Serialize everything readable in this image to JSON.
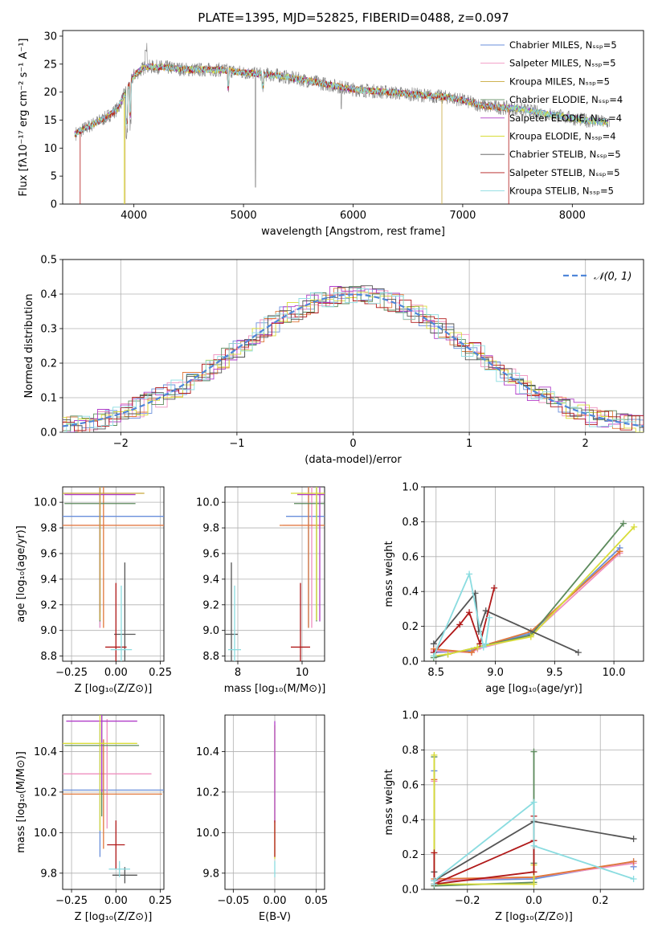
{
  "colors": [
    "#6a8fdb",
    "#ef8fbf",
    "#c8a83a",
    "#5c8a5c",
    "#b03cc8",
    "#d8dc38",
    "#555555",
    "#b01818",
    "#8adce0"
  ],
  "extra_colors": {
    "orange": "#e0783a",
    "gray": "#7f7f7f",
    "dashed": "#4f86d9"
  },
  "chart_data": [
    {
      "id": "spectrum",
      "type": "line",
      "title": "PLATE=1395, MJD=52825, FIBERID=0488, z=0.097",
      "xlabel": "wavelength [Angstrom, rest frame]",
      "ylabel": "Flux [fλ10⁻¹⁷ erg cm⁻² s⁻¹ A⁻¹]",
      "xlim": [
        3350,
        8650
      ],
      "ylim": [
        0,
        31
      ],
      "xticks": [
        4000,
        5000,
        6000,
        7000,
        8000
      ],
      "yticks": [
        0,
        5,
        10,
        15,
        20,
        25,
        30
      ],
      "legend_position": "upper right",
      "series": [
        {
          "name": "Chabrier MILES, Nₛₛₚ=5"
        },
        {
          "name": "Salpeter MILES, Nₛₛₚ=5"
        },
        {
          "name": "Kroupa MILES, Nₛₛₚ=5"
        },
        {
          "name": "Chabrier ELODIE, Nₛₛₚ=4"
        },
        {
          "name": "Salpeter ELODIE, Nₛₛₚ=4"
        },
        {
          "name": "Kroupa ELODIE, Nₛₛₚ=4"
        },
        {
          "name": "Chabrier STELIB, Nₛₛₚ=5"
        },
        {
          "name": "Salpeter STELIB, Nₛₛₚ=5"
        },
        {
          "name": "Kroupa STELIB, Nₛₛₚ=5"
        }
      ],
      "continuum": {
        "wavelength": [
          3460,
          3550,
          3650,
          3750,
          3850,
          3950,
          4000,
          4100,
          4250,
          4500,
          4800,
          5000,
          5300,
          5600,
          6000,
          6300,
          6600,
          6900,
          7200,
          7500,
          7800,
          8100,
          8360
        ],
        "flux": [
          12.5,
          13.5,
          14.5,
          15.5,
          17.0,
          21.0,
          23.0,
          24.5,
          24.5,
          24.0,
          24.0,
          23.5,
          23.0,
          22.0,
          20.5,
          20.0,
          19.5,
          19.0,
          17.5,
          17.0,
          16.0,
          15.0,
          14.5
        ]
      }
    },
    {
      "id": "residuals",
      "type": "line",
      "xlabel": "(data-model)/error",
      "ylabel": "Normed distribution",
      "xlim": [
        -2.5,
        2.5
      ],
      "ylim": [
        0,
        0.5
      ],
      "xticks": [
        -2,
        -1,
        0,
        1,
        2
      ],
      "yticks": [
        0.0,
        0.1,
        0.2,
        0.3,
        0.4,
        0.5
      ],
      "grid": true,
      "legend": "𝒩(0, 1)",
      "legend_position": "upper right"
    },
    {
      "id": "age_vs_Z",
      "type": "scatter",
      "xlabel": "Z [log₁₀(Z/Z⊙)]",
      "ylabel": "age  [log₁₀(age/yr)]",
      "xlim": [
        -0.3,
        0.27
      ],
      "ylim": [
        8.76,
        10.12
      ],
      "xticks": [
        -0.25,
        0.0,
        0.25
      ],
      "yticks": [
        8.8,
        9.0,
        9.2,
        9.4,
        9.6,
        9.8,
        10.0
      ],
      "grid": true,
      "errorbars": [
        {
          "color": 0,
          "x": -0.09,
          "xerr": 0.37,
          "y": 9.89,
          "yerr": 0.87
        },
        {
          "color": 1,
          "x": -0.09,
          "xerr": 0.37,
          "y": 9.82,
          "yerr": 0.8
        },
        {
          "color": "orange",
          "x": -0.07,
          "xerr": 0.35,
          "y": 9.82,
          "yerr": 0.8
        },
        {
          "color": 3,
          "x": -0.09,
          "xerr": 0.2,
          "y": 9.99,
          "yerr": 0.92
        },
        {
          "color": 4,
          "x": -0.09,
          "xerr": 0.2,
          "y": 10.06,
          "yerr": 0.92
        },
        {
          "color": 2,
          "x": -0.09,
          "xerr": 0.25,
          "y": 10.07,
          "yerr": 0.99
        },
        {
          "color": 6,
          "x": 0.05,
          "xerr": 0.06,
          "y": 8.97,
          "yerr": 0.56
        },
        {
          "color": 7,
          "x": 0.0,
          "xerr": 0.06,
          "y": 8.87,
          "yerr": 0.5
        },
        {
          "color": 8,
          "x": 0.03,
          "xerr": 0.06,
          "y": 8.85,
          "yerr": 0.5
        }
      ]
    },
    {
      "id": "age_vs_mass",
      "type": "scatter",
      "xlabel": "mass [log₁₀(M/M⊙)]",
      "ylabel": "",
      "xlim": [
        7.6,
        10.7
      ],
      "ylim": [
        8.76,
        10.12
      ],
      "xticks": [
        8,
        10
      ],
      "yticks": [
        8.8,
        9.0,
        9.2,
        9.4,
        9.6,
        9.8,
        10.0
      ],
      "grid": true,
      "errorbars": [
        {
          "color": 0,
          "x": 10.2,
          "xerr": 0.7,
          "y": 9.89,
          "yerr": 0.87
        },
        {
          "color": 1,
          "x": 10.3,
          "xerr": 0.9,
          "y": 9.82,
          "yerr": 0.8
        },
        {
          "color": "orange",
          "x": 10.2,
          "xerr": 0.9,
          "y": 9.82,
          "yerr": 0.8
        },
        {
          "color": 3,
          "x": 10.45,
          "xerr": 0.7,
          "y": 9.99,
          "yerr": 0.92
        },
        {
          "color": 4,
          "x": 10.55,
          "xerr": 0.7,
          "y": 10.06,
          "yerr": 0.99
        },
        {
          "color": 5,
          "x": 10.45,
          "xerr": 0.8,
          "y": 10.07,
          "yerr": 0.99
        },
        {
          "color": 6,
          "x": 7.8,
          "xerr": 0.2,
          "y": 8.97,
          "yerr": 0.56
        },
        {
          "color": 7,
          "x": 9.95,
          "xerr": 0.3,
          "y": 8.87,
          "yerr": 0.5
        },
        {
          "color": 8,
          "x": 7.9,
          "xerr": 0.2,
          "y": 8.85,
          "yerr": 0.5
        }
      ]
    },
    {
      "id": "weight_vs_age",
      "type": "line",
      "xlabel": "age  [log₁₀(age/yr)]",
      "ylabel": "mass weight",
      "xlim": [
        8.4,
        10.25
      ],
      "ylim": [
        0.0,
        1.0
      ],
      "xticks": [
        8.5,
        9.0,
        9.5,
        10.0
      ],
      "yticks": [
        0.0,
        0.2,
        0.4,
        0.6,
        0.8,
        1.0
      ],
      "grid": true,
      "series": [
        {
          "color": 0,
          "x": [
            8.48,
            8.8,
            8.85,
            9.3,
            10.05
          ],
          "y": [
            0.05,
            0.06,
            0.08,
            0.16,
            0.65
          ]
        },
        {
          "color": 1,
          "x": [
            8.48,
            8.8,
            8.85,
            9.3,
            10.05
          ],
          "y": [
            0.06,
            0.05,
            0.07,
            0.15,
            0.62
          ]
        },
        {
          "color": "orange",
          "x": [
            8.48,
            8.8,
            8.85,
            9.3,
            10.05
          ],
          "y": [
            0.07,
            0.05,
            0.08,
            0.17,
            0.63
          ]
        },
        {
          "color": 3,
          "x": [
            8.48,
            8.6,
            8.85,
            9.3,
            10.08
          ],
          "y": [
            0.02,
            0.04,
            0.08,
            0.15,
            0.79
          ]
        },
        {
          "color": 5,
          "x": [
            8.48,
            8.6,
            8.85,
            9.3,
            10.17
          ],
          "y": [
            0.03,
            0.04,
            0.08,
            0.14,
            0.77
          ]
        },
        {
          "color": 6,
          "x": [
            8.48,
            8.83,
            8.86,
            8.92,
            9.7
          ],
          "y": [
            0.1,
            0.39,
            0.17,
            0.29,
            0.05
          ]
        },
        {
          "color": 7,
          "x": [
            8.48,
            8.7,
            8.78,
            8.87,
            8.99
          ],
          "y": [
            0.05,
            0.21,
            0.28,
            0.1,
            0.42
          ]
        },
        {
          "color": 8,
          "x": [
            8.48,
            8.78,
            8.9,
            8.92,
            8.95
          ],
          "y": [
            0.03,
            0.5,
            0.08,
            0.1,
            0.25
          ]
        }
      ]
    },
    {
      "id": "mass_vs_Z",
      "type": "scatter",
      "xlabel": "Z [log₁₀(Z/Z⊙)]",
      "ylabel": "mass [log₁₀(M/M⊙)]",
      "xlim": [
        -0.3,
        0.27
      ],
      "ylim": [
        9.72,
        10.58
      ],
      "xticks": [
        -0.25,
        0.0,
        0.25
      ],
      "yticks": [
        9.8,
        10.0,
        10.2,
        10.4
      ],
      "grid": true,
      "errorbars": [
        {
          "color": 0,
          "x": -0.09,
          "xerr": 0.37,
          "y": 10.21,
          "yerr": 0.33
        },
        {
          "color": 1,
          "x": -0.05,
          "xerr": 0.25,
          "y": 10.29,
          "yerr": 0.27
        },
        {
          "color": "orange",
          "x": -0.07,
          "xerr": 0.33,
          "y": 10.19,
          "yerr": 0.27
        },
        {
          "color": 3,
          "x": -0.08,
          "xerr": 0.21,
          "y": 10.43,
          "yerr": 0.35
        },
        {
          "color": 4,
          "x": -0.08,
          "xerr": 0.2,
          "y": 10.55,
          "yerr": 0.35
        },
        {
          "color": 5,
          "x": -0.09,
          "xerr": 0.21,
          "y": 10.44,
          "yerr": 0.43
        },
        {
          "color": 6,
          "x": 0.05,
          "xerr": 0.07,
          "y": 9.79,
          "yerr": 0.04
        },
        {
          "color": 7,
          "x": 0.0,
          "xerr": 0.05,
          "y": 9.94,
          "yerr": 0.12
        },
        {
          "color": 8,
          "x": 0.02,
          "xerr": 0.06,
          "y": 9.82,
          "yerr": 0.04
        }
      ]
    },
    {
      "id": "mass_vs_ebv",
      "type": "scatter",
      "xlabel": "E(B-V)",
      "ylabel": "",
      "xlim": [
        -0.06,
        0.06
      ],
      "ylim": [
        9.72,
        10.58
      ],
      "xticks": [
        -0.05,
        0.0,
        0.05
      ],
      "yticks": [
        9.8,
        10.0,
        10.2,
        10.4
      ],
      "grid": true,
      "errorbars": [
        {
          "color": 5,
          "x": 0.0,
          "xerr": 0.0,
          "y": 10.2,
          "yerr": 0.33
        },
        {
          "color": 4,
          "x": 0.0,
          "xerr": 0.0,
          "y": 10.3,
          "yerr": 0.25
        },
        {
          "color": 7,
          "x": 0.0,
          "xerr": 0.0,
          "y": 9.97,
          "yerr": 0.09
        },
        {
          "color": 8,
          "x": 0.0,
          "xerr": 0.0,
          "y": 9.82,
          "yerr": 0.04
        }
      ]
    },
    {
      "id": "weight_vs_Z",
      "type": "line",
      "xlabel": "Z [log₁₀(Z/Z⊙)]",
      "ylabel": "mass weight",
      "xlim": [
        -0.33,
        0.33
      ],
      "ylim": [
        0.0,
        1.0
      ],
      "xticks": [
        -0.2,
        0.0,
        0.2
      ],
      "yticks": [
        0.0,
        0.2,
        0.4,
        0.6,
        0.8,
        1.0
      ],
      "grid": true,
      "series": [
        {
          "color": 0,
          "x": [
            -0.3,
            -0.3,
            0.0,
            0.3,
            0.3
          ],
          "y": [
            0.68,
            0.05,
            0.06,
            0.16,
            0.13
          ]
        },
        {
          "color": 1,
          "x": [
            -0.3,
            -0.3,
            0.0,
            0.3
          ],
          "y": [
            0.62,
            0.05,
            0.07,
            0.15
          ]
        },
        {
          "color": "orange",
          "x": [
            -0.3,
            -0.3,
            0.0,
            0.3
          ],
          "y": [
            0.63,
            0.06,
            0.07,
            0.16
          ]
        },
        {
          "color": 3,
          "x": [
            -0.3,
            -0.3,
            0.0,
            0.0,
            0.0
          ],
          "y": [
            0.76,
            0.02,
            0.04,
            0.79,
            0.15
          ]
        },
        {
          "color": 5,
          "x": [
            -0.3,
            -0.3,
            0.0,
            0.0
          ],
          "y": [
            0.77,
            0.03,
            0.03,
            0.14
          ]
        },
        {
          "color": 6,
          "x": [
            -0.3,
            -0.3,
            0.0,
            0.3
          ],
          "y": [
            0.1,
            0.05,
            0.39,
            0.29
          ]
        },
        {
          "color": 7,
          "x": [
            -0.3,
            -0.3,
            0.0,
            0.0,
            0.0,
            -0.3
          ],
          "y": [
            0.21,
            0.03,
            0.28,
            0.42,
            0.1,
            0.03
          ]
        },
        {
          "color": 8,
          "x": [
            -0.3,
            -0.3,
            0.0,
            0.0,
            0.3
          ],
          "y": [
            0.03,
            0.05,
            0.5,
            0.25,
            0.06
          ]
        }
      ]
    }
  ]
}
